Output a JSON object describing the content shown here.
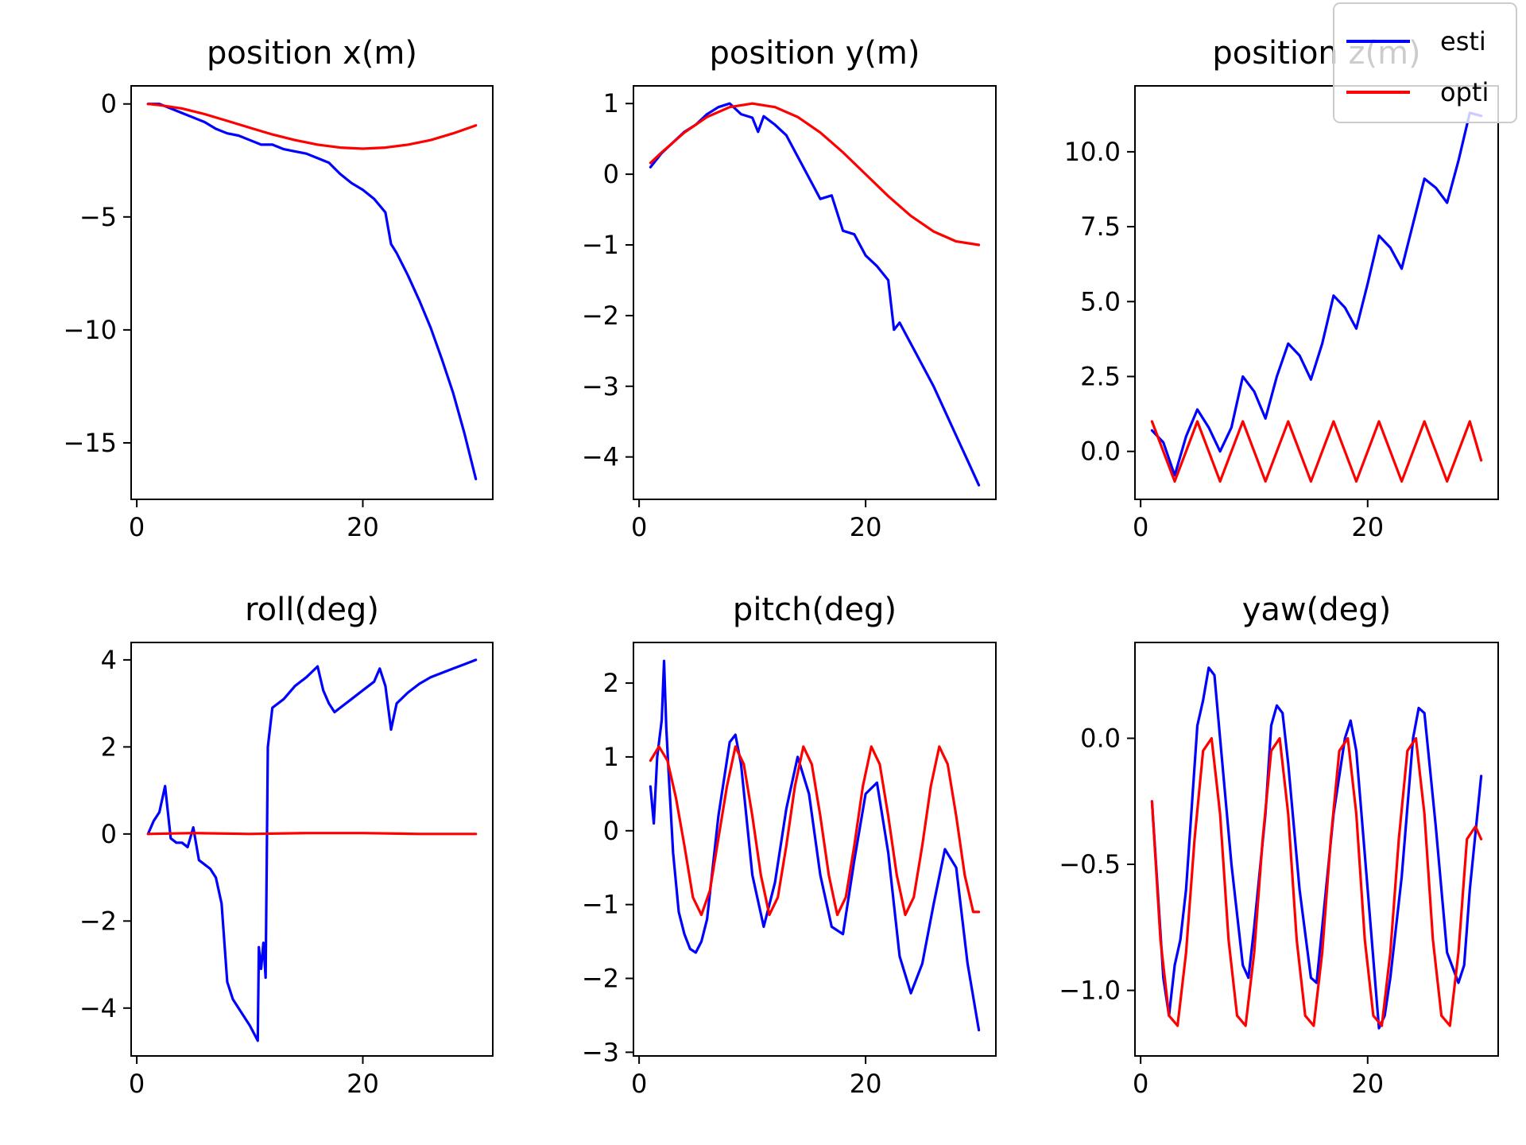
{
  "chart_data": [
    {
      "type": "line",
      "title": "position x(m)",
      "xlim": [
        -0.5,
        31.5
      ],
      "ylim": [
        -17.5,
        0.8
      ],
      "xticks": [
        0,
        20
      ],
      "yticks": [
        0,
        -5,
        -10,
        -15
      ],
      "series": [
        {
          "name": "esti",
          "color": "#0000ff",
          "x": [
            1,
            2,
            3,
            4,
            5,
            6,
            7,
            8,
            9,
            10,
            11,
            12,
            13,
            14,
            15,
            16,
            17,
            18,
            19,
            20,
            21,
            22,
            22.5,
            23,
            24,
            25,
            26,
            27,
            28,
            29,
            30
          ],
          "y": [
            0,
            0,
            -0.2,
            -0.4,
            -0.6,
            -0.8,
            -1.1,
            -1.3,
            -1.4,
            -1.6,
            -1.8,
            -1.8,
            -2.0,
            -2.1,
            -2.2,
            -2.4,
            -2.6,
            -3.1,
            -3.5,
            -3.8,
            -4.2,
            -4.8,
            -6.2,
            -6.6,
            -7.6,
            -8.7,
            -9.9,
            -11.3,
            -12.8,
            -14.6,
            -16.6
          ]
        },
        {
          "name": "opti",
          "color": "#ff0000",
          "x": [
            1,
            2,
            4,
            6,
            8,
            10,
            12,
            14,
            16,
            18,
            20,
            22,
            24,
            26,
            28,
            30
          ],
          "y": [
            0,
            -0.05,
            -0.2,
            -0.45,
            -0.75,
            -1.05,
            -1.35,
            -1.6,
            -1.8,
            -1.93,
            -1.98,
            -1.93,
            -1.8,
            -1.6,
            -1.3,
            -0.95
          ]
        }
      ]
    },
    {
      "type": "line",
      "title": "position y(m)",
      "xlim": [
        -0.5,
        31.5
      ],
      "ylim": [
        -4.6,
        1.25
      ],
      "xticks": [
        0,
        20
      ],
      "yticks": [
        1,
        0,
        -1,
        -2,
        -3,
        -4
      ],
      "series": [
        {
          "name": "esti",
          "color": "#0000ff",
          "x": [
            1,
            2,
            3,
            4,
            5,
            6,
            7,
            8,
            9,
            10,
            10.5,
            11,
            12,
            13,
            14,
            15,
            16,
            17,
            18,
            19,
            20,
            21,
            22,
            22.5,
            23,
            24,
            25,
            26,
            27,
            28,
            29,
            30
          ],
          "y": [
            0.1,
            0.3,
            0.45,
            0.6,
            0.7,
            0.85,
            0.95,
            1.0,
            0.85,
            0.8,
            0.6,
            0.82,
            0.7,
            0.55,
            0.25,
            -0.05,
            -0.35,
            -0.3,
            -0.8,
            -0.85,
            -1.15,
            -1.3,
            -1.5,
            -2.2,
            -2.1,
            -2.4,
            -2.7,
            -3.0,
            -3.35,
            -3.7,
            -4.05,
            -4.4
          ]
        },
        {
          "name": "opti",
          "color": "#ff0000",
          "x": [
            1,
            2,
            4,
            6,
            8,
            10,
            12,
            14,
            16,
            18,
            20,
            22,
            24,
            26,
            28,
            30
          ],
          "y": [
            0.16,
            0.31,
            0.59,
            0.81,
            0.95,
            1.0,
            0.95,
            0.81,
            0.59,
            0.31,
            0.0,
            -0.31,
            -0.59,
            -0.81,
            -0.95,
            -1.0
          ]
        }
      ]
    },
    {
      "type": "line",
      "title": "position z(m)",
      "xlim": [
        -0.5,
        31.5
      ],
      "ylim": [
        -1.6,
        12.2
      ],
      "xticks": [
        0,
        20
      ],
      "yticks": [
        0.0,
        2.5,
        5.0,
        7.5,
        10.0
      ],
      "series": [
        {
          "name": "esti",
          "color": "#0000ff",
          "x": [
            1,
            2,
            3,
            4,
            5,
            6,
            7,
            8,
            9,
            10,
            11,
            12,
            13,
            14,
            15,
            16,
            17,
            18,
            19,
            20,
            21,
            22,
            23,
            24,
            25,
            26,
            27,
            28,
            29,
            30
          ],
          "y": [
            0.7,
            0.3,
            -0.8,
            0.5,
            1.4,
            0.8,
            0.0,
            0.8,
            2.5,
            2.0,
            1.1,
            2.5,
            3.6,
            3.2,
            2.4,
            3.6,
            5.2,
            4.8,
            4.1,
            5.6,
            7.2,
            6.8,
            6.1,
            7.6,
            9.1,
            8.8,
            8.3,
            9.7,
            11.3,
            11.2
          ]
        },
        {
          "name": "opti",
          "color": "#ff0000",
          "x": [
            1,
            2,
            3,
            4,
            5,
            6,
            7,
            8,
            9,
            10,
            11,
            12,
            13,
            14,
            15,
            16,
            17,
            18,
            19,
            20,
            21,
            22,
            23,
            24,
            25,
            26,
            27,
            28,
            29,
            30
          ],
          "y": [
            1.0,
            0.0,
            -1.0,
            0.0,
            1.0,
            0.0,
            -1.0,
            0.0,
            1.0,
            0.0,
            -1.0,
            0.0,
            1.0,
            0.0,
            -1.0,
            0.0,
            1.0,
            0.0,
            -1.0,
            0.0,
            1.0,
            0.0,
            -1.0,
            0.0,
            1.0,
            0.0,
            -1.0,
            0.0,
            1.0,
            -0.3
          ]
        }
      ]
    },
    {
      "type": "line",
      "title": "roll(deg)",
      "xlim": [
        -0.5,
        31.5
      ],
      "ylim": [
        -5.1,
        4.4
      ],
      "xticks": [
        0,
        20
      ],
      "yticks": [
        4,
        2,
        0,
        -2,
        -4
      ],
      "series": [
        {
          "name": "esti",
          "color": "#0000ff",
          "x": [
            1,
            1.5,
            2,
            2.5,
            3,
            3.5,
            4,
            4.5,
            5,
            5.5,
            6,
            6.5,
            7,
            7.5,
            8,
            8.5,
            9,
            10,
            10.7,
            10.8,
            11,
            11.2,
            11.4,
            11.6,
            12,
            13,
            14,
            15,
            16,
            16.5,
            17,
            17.5,
            18,
            19,
            20,
            21,
            21.5,
            22,
            22.5,
            23,
            24,
            25,
            26,
            27,
            28,
            29,
            30
          ],
          "y": [
            0.0,
            0.3,
            0.5,
            1.1,
            -0.1,
            -0.2,
            -0.2,
            -0.3,
            0.15,
            -0.6,
            -0.7,
            -0.8,
            -1.0,
            -1.6,
            -3.4,
            -3.8,
            -4.0,
            -4.4,
            -4.75,
            -2.6,
            -3.1,
            -2.5,
            -3.3,
            2.0,
            2.9,
            3.1,
            3.4,
            3.6,
            3.85,
            3.3,
            3.0,
            2.8,
            2.9,
            3.1,
            3.3,
            3.5,
            3.8,
            3.4,
            2.4,
            3.0,
            3.25,
            3.45,
            3.6,
            3.7,
            3.8,
            3.9,
            4.0
          ]
        },
        {
          "name": "opti",
          "color": "#ff0000",
          "x": [
            1,
            5,
            10,
            15,
            20,
            25,
            30
          ],
          "y": [
            0.0,
            0.02,
            0.0,
            0.02,
            0.02,
            0.0,
            0.0
          ]
        }
      ]
    },
    {
      "type": "line",
      "title": "pitch(deg)",
      "xlim": [
        -0.5,
        31.5
      ],
      "ylim": [
        -3.05,
        2.55
      ],
      "xticks": [
        0,
        20
      ],
      "yticks": [
        2,
        1,
        0,
        -1,
        -2,
        -3
      ],
      "series": [
        {
          "name": "esti",
          "color": "#0000ff",
          "x": [
            1,
            1.3,
            1.6,
            2,
            2.2,
            2.4,
            2.6,
            3,
            3.5,
            4,
            4.5,
            5,
            5.5,
            6,
            7,
            8,
            8.5,
            9,
            10,
            11,
            12,
            13,
            14,
            15,
            16,
            17,
            18,
            19,
            20,
            21,
            22,
            23,
            24,
            25,
            26,
            27,
            28,
            29,
            30
          ],
          "y": [
            0.6,
            0.1,
            1.0,
            1.5,
            2.3,
            1.4,
            0.8,
            -0.3,
            -1.1,
            -1.4,
            -1.6,
            -1.65,
            -1.5,
            -1.2,
            0.2,
            1.2,
            1.3,
            0.9,
            -0.6,
            -1.3,
            -0.7,
            0.3,
            1.0,
            0.5,
            -0.6,
            -1.3,
            -1.4,
            -0.4,
            0.5,
            0.65,
            -0.3,
            -1.7,
            -2.2,
            -1.8,
            -1.0,
            -0.25,
            -0.5,
            -1.8,
            -2.7
          ]
        },
        {
          "name": "opti",
          "color": "#ff0000",
          "x": [
            1,
            1.75,
            2.5,
            3.25,
            4,
            4.75,
            5.5,
            6.25,
            7,
            7.75,
            8.5,
            9.25,
            10,
            10.75,
            11.5,
            12.25,
            13,
            13.75,
            14.5,
            15.25,
            16,
            16.75,
            17.5,
            18.25,
            19,
            19.75,
            20.5,
            21.25,
            22,
            22.75,
            23.5,
            24.25,
            25,
            25.75,
            26.5,
            27.25,
            28,
            28.75,
            29.5,
            30
          ],
          "y": [
            0.95,
            1.14,
            0.95,
            0.45,
            -0.2,
            -0.9,
            -1.14,
            -0.81,
            -0.1,
            0.6,
            1.14,
            0.9,
            0.2,
            -0.6,
            -1.14,
            -0.9,
            -0.2,
            0.6,
            1.14,
            0.9,
            0.2,
            -0.6,
            -1.14,
            -0.9,
            -0.2,
            0.6,
            1.14,
            0.9,
            0.2,
            -0.6,
            -1.14,
            -0.9,
            -0.2,
            0.6,
            1.14,
            0.9,
            0.2,
            -0.6,
            -1.1,
            -1.1
          ]
        }
      ]
    },
    {
      "type": "line",
      "title": "yaw(deg)",
      "xlim": [
        -0.5,
        31.5
      ],
      "ylim": [
        -1.26,
        0.38
      ],
      "xticks": [
        0,
        20
      ],
      "yticks": [
        0.0,
        -0.5,
        -1.0
      ],
      "series": [
        {
          "name": "esti",
          "color": "#0000ff",
          "x": [
            1,
            1.5,
            2,
            2.5,
            3,
            3.5,
            4,
            5,
            5.5,
            6,
            6.5,
            7,
            8,
            9,
            9.5,
            10,
            11,
            11.5,
            12,
            12.5,
            13,
            14,
            15,
            15.5,
            16,
            17,
            18,
            18.5,
            19,
            20,
            21,
            21.5,
            22,
            23,
            24,
            24.5,
            25,
            26,
            27,
            28,
            28.5,
            29,
            30
          ],
          "y": [
            -0.25,
            -0.6,
            -0.95,
            -1.1,
            -0.9,
            -0.8,
            -0.6,
            0.05,
            0.15,
            0.28,
            0.25,
            0.0,
            -0.5,
            -0.9,
            -0.95,
            -0.75,
            -0.3,
            0.05,
            0.13,
            0.1,
            -0.1,
            -0.6,
            -0.95,
            -0.97,
            -0.75,
            -0.3,
            0.0,
            0.07,
            -0.05,
            -0.6,
            -1.15,
            -1.1,
            -0.95,
            -0.55,
            0.0,
            0.12,
            0.1,
            -0.35,
            -0.85,
            -0.97,
            -0.9,
            -0.6,
            -0.15
          ]
        },
        {
          "name": "opti",
          "color": "#ff0000",
          "x": [
            1,
            1.75,
            2.5,
            3.25,
            4,
            4.75,
            5.5,
            6.25,
            7,
            7.75,
            8.5,
            9.25,
            10,
            10.75,
            11.5,
            12.25,
            13,
            13.75,
            14.5,
            15.25,
            16,
            16.75,
            17.5,
            18.25,
            19,
            19.75,
            20.5,
            21.25,
            22,
            22.75,
            23.5,
            24.25,
            25,
            25.75,
            26.5,
            27.25,
            28,
            28.75,
            29.5,
            30
          ],
          "y": [
            -0.25,
            -0.8,
            -1.1,
            -1.14,
            -0.85,
            -0.4,
            -0.05,
            0.0,
            -0.3,
            -0.8,
            -1.1,
            -1.14,
            -0.85,
            -0.4,
            -0.05,
            0.0,
            -0.3,
            -0.8,
            -1.1,
            -1.14,
            -0.85,
            -0.4,
            -0.05,
            0.0,
            -0.3,
            -0.8,
            -1.1,
            -1.14,
            -0.85,
            -0.4,
            -0.05,
            0.0,
            -0.3,
            -0.8,
            -1.1,
            -1.14,
            -0.85,
            -0.4,
            -0.35,
            -0.4
          ]
        }
      ]
    }
  ],
  "legend": {
    "placement": "top-right",
    "entries": [
      {
        "label": "esti",
        "color": "#0000ff"
      },
      {
        "label": "opti",
        "color": "#ff0000"
      }
    ]
  }
}
